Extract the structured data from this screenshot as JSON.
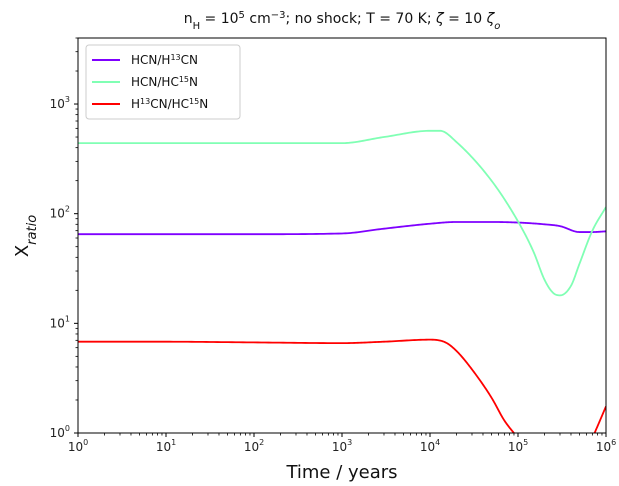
{
  "chart_data": {
    "type": "line",
    "title": {
      "parts": [
        {
          "t": "n"
        },
        {
          "t": "H",
          "sub": true
        },
        {
          "t": " = 10"
        },
        {
          "t": "5",
          "sup": true
        },
        {
          "t": " cm"
        },
        {
          "t": "−3",
          "sup": true
        },
        {
          "t": "; no shock; T = 70 K; "
        },
        {
          "t": "ζ",
          "italic": true
        },
        {
          "t": " = 10 "
        },
        {
          "t": "ζ",
          "italic": true
        },
        {
          "t": "o",
          "sub": true,
          "italic": true
        }
      ]
    },
    "xlabel": "Time / years",
    "ylabel": {
      "parts": [
        {
          "t": "X"
        },
        {
          "t": "ratio",
          "sub": true,
          "italic": true
        }
      ]
    },
    "x_scale": "log",
    "y_scale": "log",
    "xlim": [
      1,
      1000000
    ],
    "ylim": [
      1,
      4000
    ],
    "x_ticks": [
      {
        "value": 1,
        "base": "10",
        "exp": "0"
      },
      {
        "value": 10,
        "base": "10",
        "exp": "1"
      },
      {
        "value": 100,
        "base": "10",
        "exp": "2"
      },
      {
        "value": 1000,
        "base": "10",
        "exp": "3"
      },
      {
        "value": 10000,
        "base": "10",
        "exp": "4"
      },
      {
        "value": 100000,
        "base": "10",
        "exp": "5"
      },
      {
        "value": 1000000,
        "base": "10",
        "exp": "6"
      }
    ],
    "y_ticks": [
      {
        "value": 1,
        "base": "10",
        "exp": "0"
      },
      {
        "value": 10,
        "base": "10",
        "exp": "1"
      },
      {
        "value": 100,
        "base": "10",
        "exp": "2"
      },
      {
        "value": 1000,
        "base": "10",
        "exp": "3"
      }
    ],
    "grid": false,
    "legend_position": "top-left",
    "series": [
      {
        "name": "HCN/H13CN",
        "legend_parts": [
          {
            "t": "HCN/H"
          },
          {
            "t": "13",
            "sup": true
          },
          {
            "t": "CN"
          }
        ],
        "color": "#7f00ff",
        "x": [
          1,
          10,
          100,
          1000,
          3000,
          10000,
          20000,
          50000,
          100000,
          200000,
          300000,
          500000,
          700000,
          1000000
        ],
        "y": [
          65,
          65,
          65,
          66,
          73,
          81,
          84,
          84,
          83,
          80,
          77,
          68,
          68,
          69
        ]
      },
      {
        "name": "HCN/HC15N",
        "legend_parts": [
          {
            "t": "HCN/HC"
          },
          {
            "t": "15",
            "sup": true
          },
          {
            "t": "N"
          }
        ],
        "color": "#80ffb4",
        "x": [
          1,
          10,
          100,
          1000,
          3000,
          10000,
          13000,
          20000,
          50000,
          100000,
          150000,
          200000,
          250000,
          300000,
          400000,
          500000,
          700000,
          1000000
        ],
        "y": [
          440,
          440,
          440,
          440,
          500,
          570,
          570,
          450,
          200,
          85,
          45,
          25,
          19,
          18,
          22,
          35,
          70,
          115
        ]
      },
      {
        "name": "H13CN/HC15N",
        "legend_parts": [
          {
            "t": "H"
          },
          {
            "t": "13",
            "sup": true
          },
          {
            "t": "CN/HC"
          },
          {
            "t": "15",
            "sup": true
          },
          {
            "t": "N"
          }
        ],
        "color": "#ff0000",
        "x": [
          1,
          10,
          100,
          1000,
          3000,
          10000,
          15000,
          20000,
          30000,
          50000,
          70000,
          100000
        ],
        "y": [
          6.8,
          6.8,
          6.7,
          6.6,
          6.8,
          7.1,
          6.7,
          5.6,
          3.8,
          2.1,
          1.3,
          0.9
        ],
        "x2": [
          700000,
          800000,
          1000000
        ],
        "y2": [
          0.9,
          1.15,
          1.75
        ]
      }
    ]
  }
}
